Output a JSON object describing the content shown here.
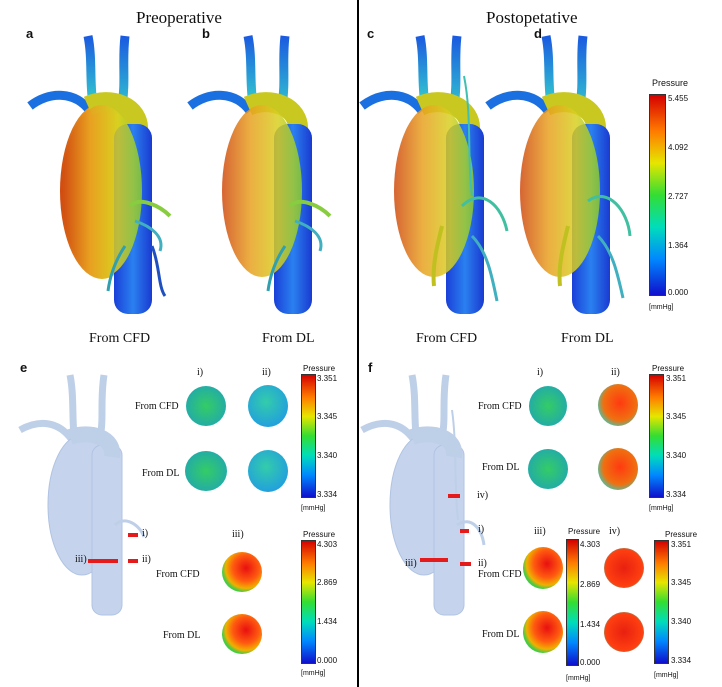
{
  "top": {
    "left_title": "Preoperative",
    "right_title": "Postopetative",
    "panels": [
      {
        "letter": "a",
        "caption": "From CFD"
      },
      {
        "letter": "b",
        "caption": "From DL"
      },
      {
        "letter": "c",
        "caption": "From CFD"
      },
      {
        "letter": "d",
        "caption": "From DL"
      }
    ],
    "colorbar": {
      "title": "Pressure",
      "ticks": [
        "5.455",
        "4.092",
        "2.727",
        "1.364",
        "0.000"
      ],
      "unit": "[mmHg]"
    }
  },
  "panel_e": {
    "letter": "e",
    "col_i": "i)",
    "col_ii": "ii)",
    "col_iii": "iii)",
    "row_cfd": "From CFD",
    "row_dl": "From DL",
    "marker_i": "i)",
    "marker_ii": "ii)",
    "marker_iii": "iii)",
    "cbar1": {
      "title": "Pressure",
      "ticks": [
        "3.351",
        "3.345",
        "3.340",
        "3.334"
      ],
      "unit": "[mmHg]"
    },
    "cbar2": {
      "title": "Pressure",
      "ticks": [
        "4.303",
        "2.869",
        "1.434",
        "0.000"
      ],
      "unit": "[mmHg]"
    }
  },
  "panel_f": {
    "letter": "f",
    "col_i": "i)",
    "col_ii": "ii)",
    "col_iii": "iii)",
    "col_iv": "iv)",
    "row_cfd": "From CFD",
    "row_dl": "From DL",
    "marker_i": "i)",
    "marker_ii": "ii)",
    "marker_iii": "iii)",
    "marker_iv": "iv)",
    "cbar1": {
      "title": "Pressure",
      "ticks": [
        "3.351",
        "3.345",
        "3.340",
        "3.334"
      ],
      "unit": "[mmHg]"
    },
    "cbar2": {
      "title": "Pressure",
      "ticks": [
        "4.303",
        "2.869",
        "1.434",
        "0.000"
      ],
      "unit": "[mmHg]"
    },
    "cbar3": {
      "title": "Pressure",
      "ticks": [
        "3.351",
        "3.345",
        "3.340",
        "3.334"
      ],
      "unit": "[mmHg]"
    }
  }
}
